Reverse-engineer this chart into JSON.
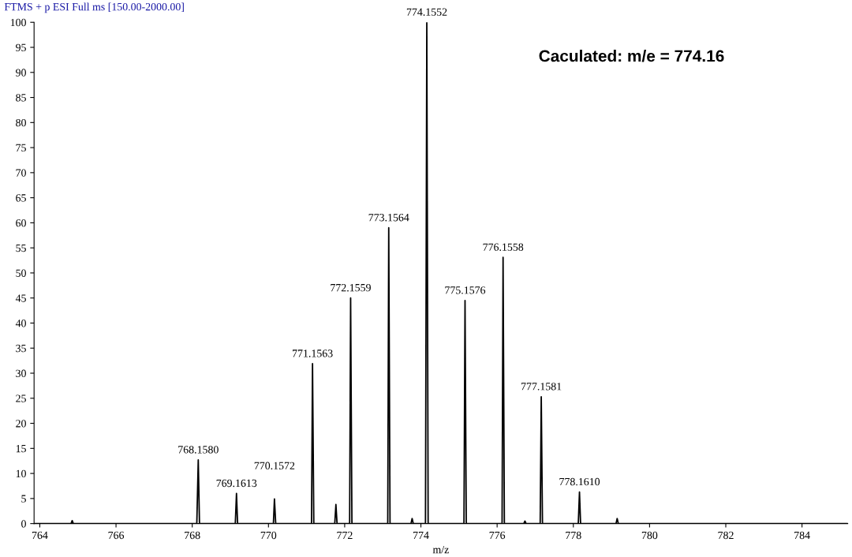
{
  "chart_data": {
    "type": "line",
    "title": "FTMS + p ESI Full ms [150.00-2000.00]",
    "xlabel": "m/z",
    "series": [
      {
        "color": "#000000",
        "x": [
          763.85,
          764.82,
          764.85,
          764.88,
          768.12,
          768.158,
          768.19,
          769.13,
          769.161,
          769.19,
          770.13,
          770.157,
          770.19,
          771.13,
          771.156,
          771.19,
          771.74,
          771.77,
          771.8,
          772.13,
          772.156,
          772.19,
          773.13,
          773.156,
          773.19,
          773.74,
          773.77,
          773.8,
          774.12,
          774.155,
          774.19,
          775.13,
          775.158,
          775.19,
          776.13,
          776.156,
          776.19,
          776.7,
          776.73,
          776.76,
          777.13,
          777.158,
          777.19,
          778.13,
          778.161,
          778.19,
          779.12,
          779.15,
          779.18,
          785.2
        ],
        "values": [
          0,
          0,
          0.6,
          0,
          0,
          12.7,
          0,
          0,
          6.0,
          0,
          0,
          4.9,
          0,
          0,
          31.9,
          0,
          0,
          3.8,
          0,
          0,
          45.0,
          0,
          0,
          59.0,
          0,
          0,
          1.0,
          0,
          0,
          100,
          0,
          0,
          44.5,
          0,
          0,
          53.1,
          0,
          0,
          0.5,
          0,
          0,
          25.3,
          0,
          0,
          6.3,
          0,
          0,
          1.0,
          0,
          0
        ]
      }
    ],
    "xlim": [
      763.85,
      785.2
    ],
    "xticks": [
      764,
      766,
      768,
      770,
      772,
      774,
      776,
      778,
      780,
      782,
      784
    ],
    "ylim": [
      0,
      100
    ],
    "yticks": [
      0,
      5,
      10,
      15,
      20,
      25,
      30,
      35,
      40,
      45,
      50,
      55,
      60,
      65,
      70,
      75,
      80,
      85,
      90,
      95,
      100
    ],
    "grid": false,
    "marker": "none",
    "line_style": "solid",
    "annotations": [
      {
        "text": "768.1580",
        "x": 768.158,
        "y": 12.7
      },
      {
        "text": "769.1613",
        "x": 769.161,
        "y": 6.0
      },
      {
        "text": "770.1572",
        "x": 770.157,
        "y": 4.9
      },
      {
        "text": "771.1563",
        "x": 771.156,
        "y": 31.9
      },
      {
        "text": "772.1559",
        "x": 772.156,
        "y": 45.0
      },
      {
        "text": "773.1564",
        "x": 773.156,
        "y": 59.0
      },
      {
        "text": "774.1552",
        "x": 774.155,
        "y": 100
      },
      {
        "text": "775.1576",
        "x": 775.158,
        "y": 44.5
      },
      {
        "text": "776.1558",
        "x": 776.156,
        "y": 53.1
      },
      {
        "text": "777.1581",
        "x": 777.158,
        "y": 25.3
      },
      {
        "text": "778.1610",
        "x": 778.161,
        "y": 6.3
      },
      "Caculated: m/e = 774.16"
    ]
  }
}
